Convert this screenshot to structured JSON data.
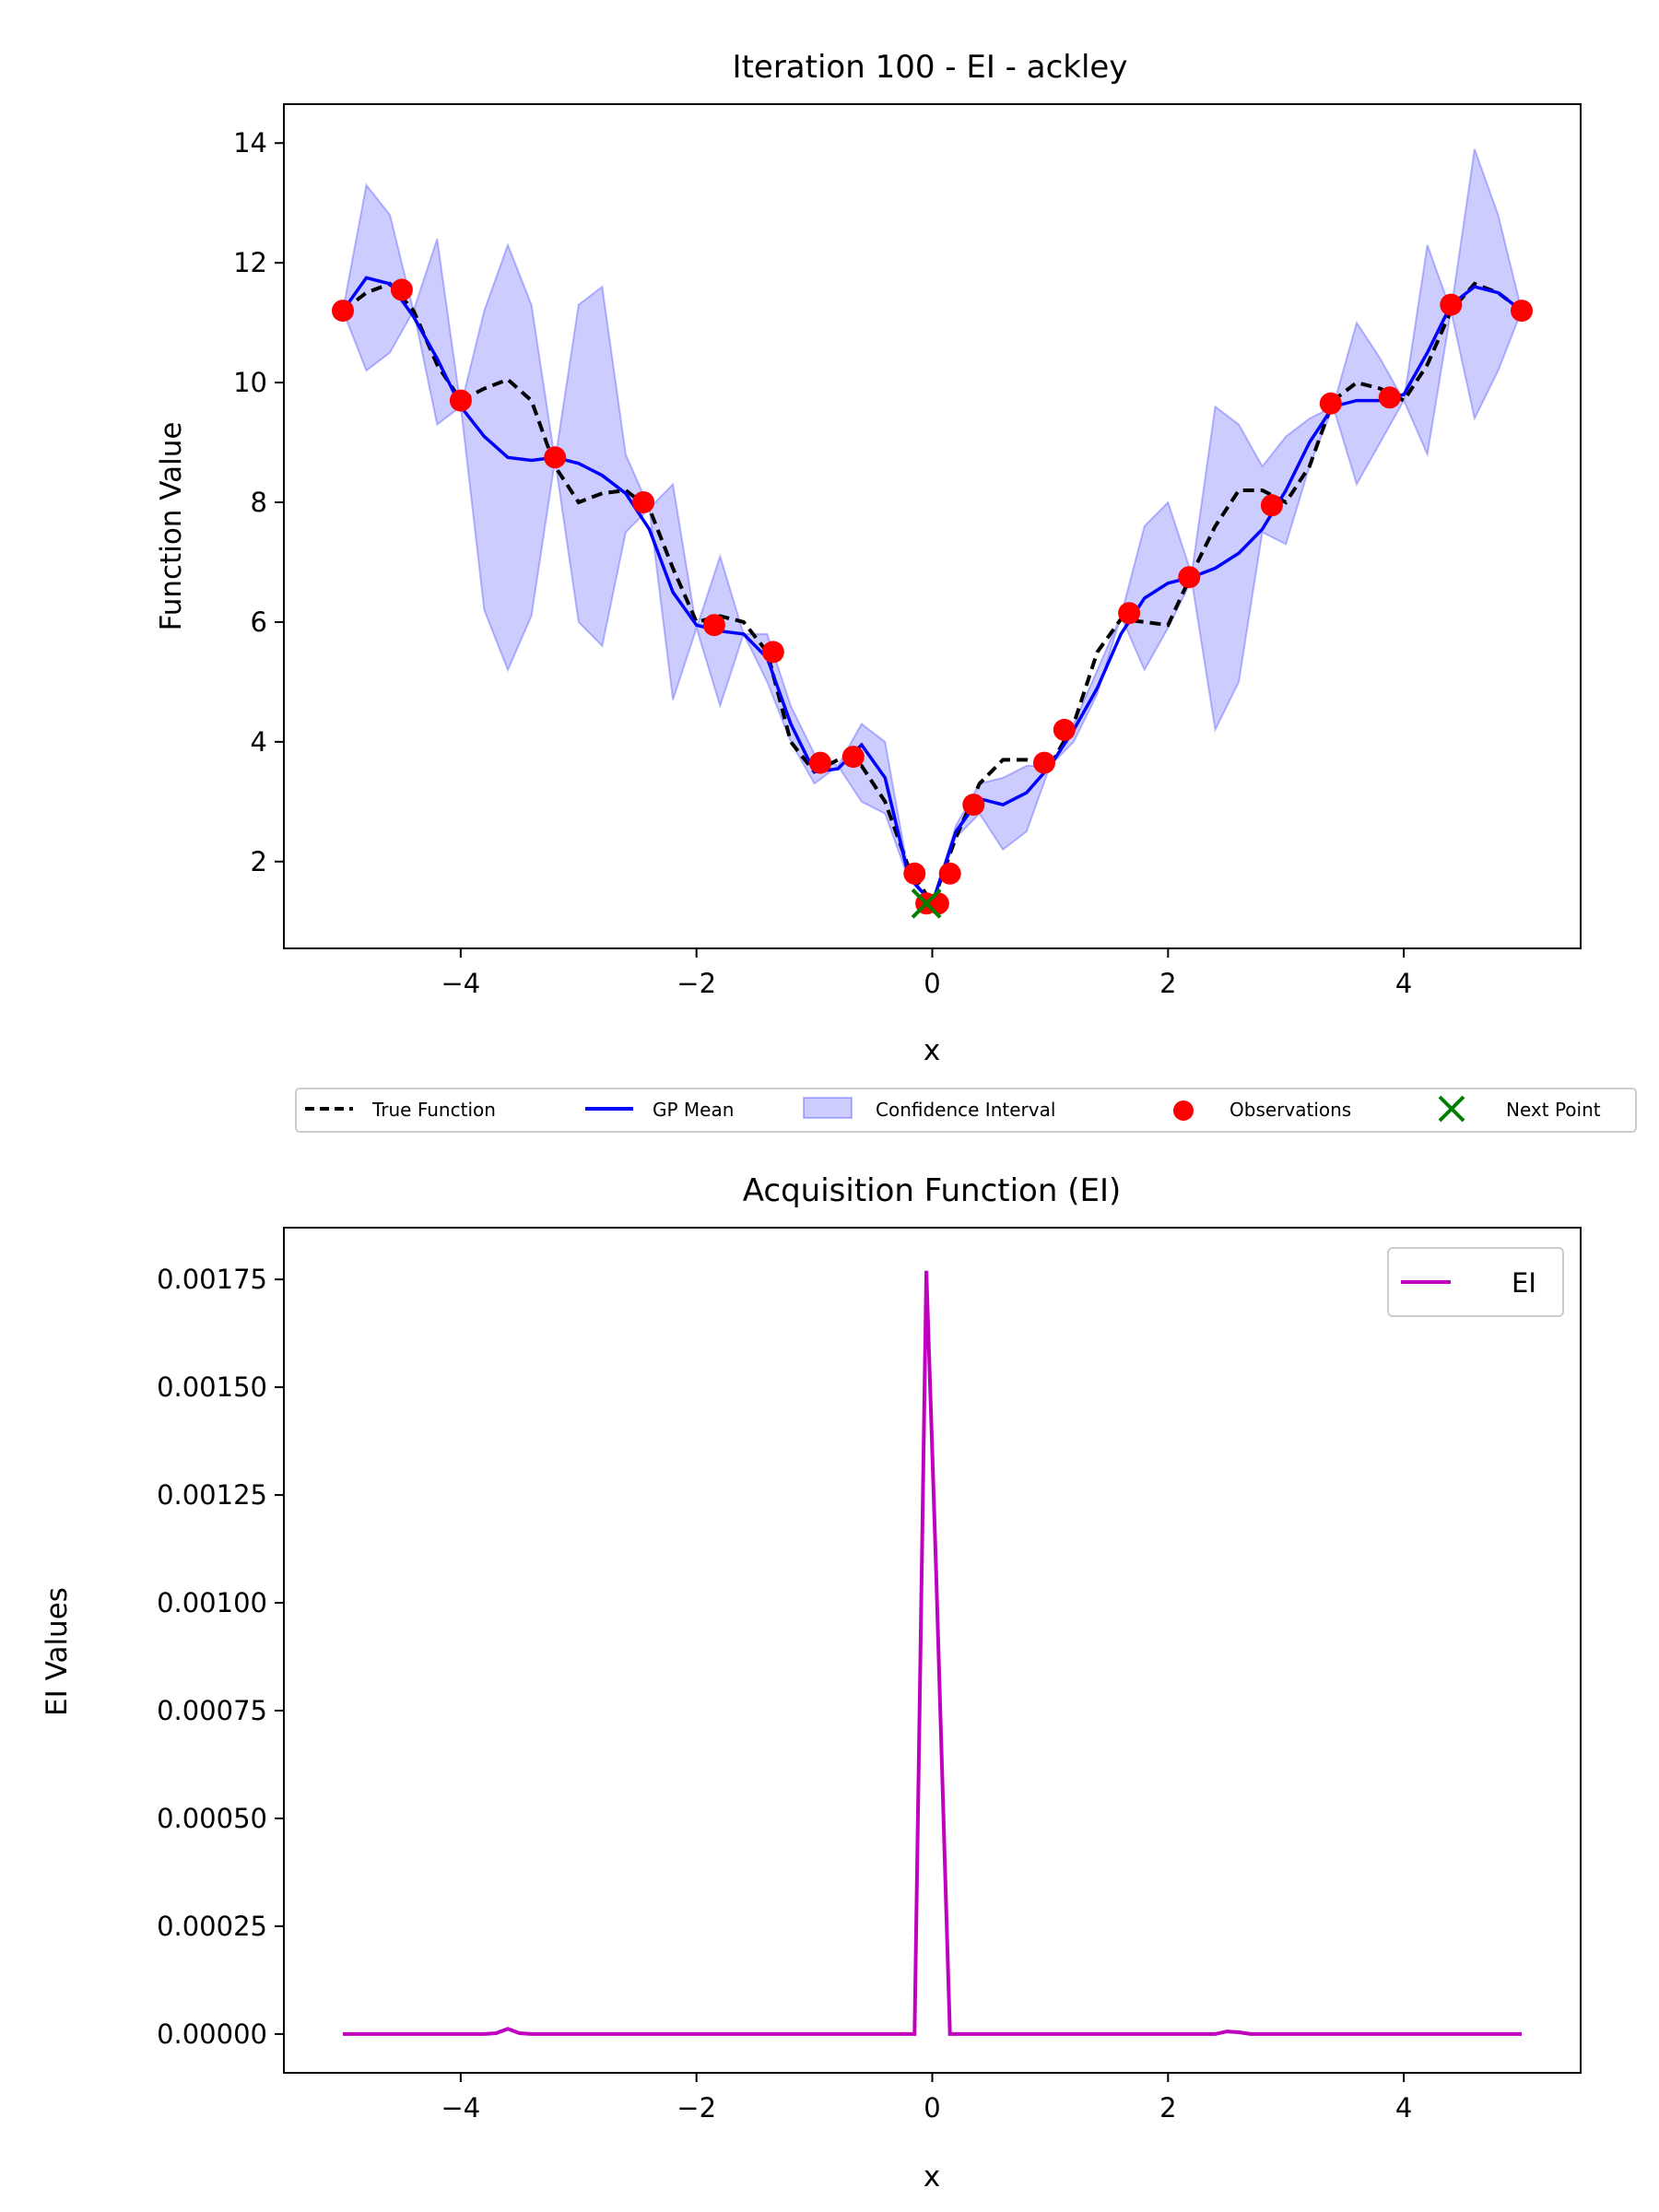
{
  "chart_data": [
    {
      "type": "line",
      "title": "Iteration 100 - EI - ackley",
      "xlabel": "x",
      "ylabel": "Function Value",
      "xlim": [
        -5.5,
        5.5
      ],
      "ylim": [
        0.55,
        14.65
      ],
      "xticks": [
        -4,
        -2,
        0,
        2,
        4
      ],
      "yticks": [
        2,
        4,
        6,
        8,
        10,
        12,
        14
      ],
      "grid": false,
      "legend_position": "below-plot",
      "legend": [
        "True Function",
        "GP Mean",
        "Confidence Interval",
        "Observations",
        "Next Point"
      ],
      "colors": {
        "true_function": "#000000",
        "gp_mean": "#0000ff",
        "confidence": "#0000ff",
        "observations": "#ff0000",
        "next_point": "#008000"
      },
      "true_function": {
        "x": [
          -5,
          -4.8,
          -4.6,
          -4.4,
          -4.2,
          -4,
          -3.8,
          -3.6,
          -3.4,
          -3.2,
          -3,
          -2.8,
          -2.6,
          -2.4,
          -2.2,
          -2,
          -1.8,
          -1.6,
          -1.4,
          -1.2,
          -1,
          -0.8,
          -0.6,
          -0.4,
          -0.2,
          0,
          0.2,
          0.4,
          0.6,
          0.8,
          1,
          1.2,
          1.4,
          1.6,
          1.8,
          2,
          2.2,
          2.4,
          2.6,
          2.8,
          3,
          3.2,
          3.4,
          3.6,
          3.8,
          4,
          4.2,
          4.4,
          4.6,
          4.8,
          5
        ],
        "y": [
          11.2,
          11.5,
          11.65,
          11.2,
          10.3,
          9.7,
          9.9,
          10.05,
          9.7,
          8.6,
          8.0,
          8.15,
          8.2,
          7.9,
          6.9,
          6.0,
          6.1,
          6.0,
          5.5,
          4.0,
          3.5,
          3.7,
          3.6,
          3.0,
          1.9,
          1.3,
          2.4,
          3.3,
          3.7,
          3.7,
          3.6,
          4.3,
          5.5,
          6.05,
          6.0,
          5.95,
          6.8,
          7.6,
          8.2,
          8.2,
          8.0,
          8.6,
          9.7,
          10.0,
          9.9,
          9.7,
          10.3,
          11.2,
          11.65,
          11.5,
          11.2
        ]
      },
      "gp_mean": {
        "x": [
          -5,
          -4.8,
          -4.6,
          -4.4,
          -4.2,
          -4,
          -3.8,
          -3.6,
          -3.4,
          -3.2,
          -3,
          -2.8,
          -2.6,
          -2.4,
          -2.2,
          -2,
          -1.8,
          -1.6,
          -1.4,
          -1.2,
          -1,
          -0.8,
          -0.6,
          -0.4,
          -0.2,
          0,
          0.2,
          0.4,
          0.6,
          0.8,
          1,
          1.2,
          1.4,
          1.6,
          1.8,
          2,
          2.2,
          2.4,
          2.6,
          2.8,
          3,
          3.2,
          3.4,
          3.6,
          3.8,
          4,
          4.2,
          4.4,
          4.6,
          4.8,
          5
        ],
        "y": [
          11.2,
          11.75,
          11.65,
          11.1,
          10.4,
          9.6,
          9.1,
          8.75,
          8.7,
          8.75,
          8.65,
          8.45,
          8.15,
          7.55,
          6.5,
          5.95,
          5.85,
          5.8,
          5.4,
          4.3,
          3.5,
          3.55,
          3.95,
          3.4,
          1.75,
          1.3,
          2.5,
          3.05,
          2.95,
          3.15,
          3.6,
          4.2,
          4.9,
          5.8,
          6.4,
          6.65,
          6.75,
          6.9,
          7.15,
          7.55,
          8.2,
          9.0,
          9.6,
          9.7,
          9.7,
          9.8,
          10.5,
          11.3,
          11.6,
          11.5,
          11.2
        ]
      },
      "confidence_interval": {
        "x": [
          -5,
          -4.8,
          -4.6,
          -4.4,
          -4.2,
          -4,
          -3.8,
          -3.6,
          -3.4,
          -3.2,
          -3,
          -2.8,
          -2.6,
          -2.4,
          -2.2,
          -2,
          -1.8,
          -1.6,
          -1.4,
          -1.2,
          -1,
          -0.8,
          -0.6,
          -0.4,
          -0.2,
          0,
          0.2,
          0.4,
          0.6,
          0.8,
          1,
          1.2,
          1.4,
          1.6,
          1.8,
          2,
          2.2,
          2.4,
          2.6,
          2.8,
          3,
          3.2,
          3.4,
          3.6,
          3.8,
          4,
          4.2,
          4.4,
          4.6,
          4.8,
          5
        ],
        "lower": [
          11.2,
          10.2,
          10.5,
          11.2,
          9.3,
          9.6,
          6.2,
          5.2,
          6.1,
          8.7,
          6.0,
          5.6,
          7.5,
          7.9,
          4.7,
          5.9,
          4.6,
          5.8,
          5.0,
          4.0,
          3.3,
          3.6,
          3.0,
          2.8,
          1.7,
          1.3,
          2.4,
          2.8,
          2.2,
          2.5,
          3.6,
          4.0,
          4.8,
          6.1,
          5.2,
          5.9,
          6.7,
          4.2,
          5.0,
          7.5,
          7.3,
          8.6,
          9.6,
          8.3,
          9.0,
          9.7,
          8.8,
          11.2,
          9.4,
          10.2,
          11.2
        ],
        "upper": [
          11.2,
          13.3,
          12.8,
          11.2,
          12.4,
          9.6,
          11.2,
          12.3,
          11.3,
          8.7,
          11.3,
          11.6,
          8.8,
          7.9,
          8.3,
          5.9,
          7.1,
          5.8,
          5.8,
          4.6,
          3.8,
          3.6,
          4.3,
          4.0,
          1.8,
          1.3,
          2.6,
          3.3,
          3.4,
          3.6,
          3.6,
          4.3,
          5.2,
          6.1,
          7.6,
          8.0,
          6.8,
          9.6,
          9.3,
          8.6,
          9.1,
          9.4,
          9.6,
          11.0,
          10.4,
          9.7,
          12.3,
          11.2,
          13.9,
          12.8,
          11.2
        ]
      },
      "observations": {
        "x": [
          -5,
          -4.5,
          -4,
          -3.2,
          -2.45,
          -1.85,
          -1.35,
          -0.95,
          -0.67,
          -0.15,
          -0.05,
          0.05,
          0.15,
          0.35,
          0.95,
          1.12,
          1.67,
          2.18,
          2.88,
          3.38,
          3.88,
          4.4,
          5
        ],
        "y": [
          11.2,
          11.55,
          9.7,
          8.75,
          8.0,
          5.95,
          5.5,
          3.65,
          3.75,
          1.8,
          1.3,
          1.3,
          1.8,
          2.95,
          3.65,
          4.2,
          6.15,
          6.75,
          7.95,
          9.65,
          9.75,
          11.3,
          11.2
        ]
      },
      "next_point": {
        "x": -0.05,
        "y": 1.3
      }
    },
    {
      "type": "line",
      "title": "Acquisition Function (EI)",
      "xlabel": "x",
      "ylabel": "EI Values",
      "xlim": [
        -5.5,
        5.5
      ],
      "ylim": [
        -9e-05,
        0.00187
      ],
      "xticks": [
        -4,
        -2,
        0,
        2,
        4
      ],
      "yticks": [
        "0.00000",
        "0.00025",
        "0.00050",
        "0.00075",
        "0.00100",
        "0.00125",
        "0.00150",
        "0.00175"
      ],
      "grid": false,
      "legend_position": "top-right",
      "legend": [
        "EI"
      ],
      "colors": {
        "ei": "#bf00bf"
      },
      "series": [
        {
          "name": "EI",
          "x": [
            -5,
            -3.8,
            -3.7,
            -3.6,
            -3.5,
            -3.4,
            -0.15,
            -0.05,
            0.03,
            0.15,
            2.4,
            2.5,
            2.6,
            2.7,
            5
          ],
          "y": [
            0,
            0,
            2e-06,
            1.2e-05,
            2e-06,
            0,
            0,
            0.00177,
            0.0011,
            0,
            0,
            6e-06,
            4e-06,
            0,
            0
          ]
        }
      ]
    }
  ]
}
